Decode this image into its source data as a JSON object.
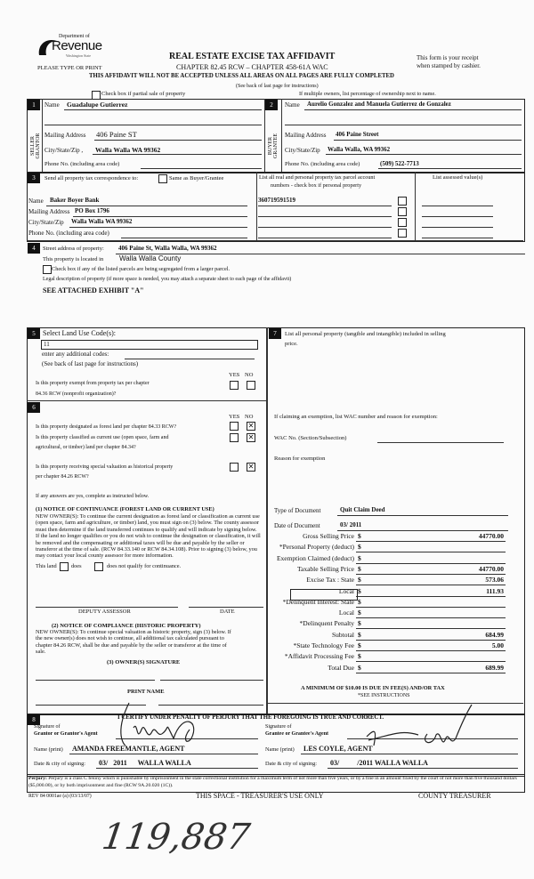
{
  "header": {
    "logo": {
      "line1": "Department of",
      "line2": "Revenue",
      "line3": "Washington State"
    },
    "please_type": "PLEASE TYPE OR PRINT",
    "title": "REAL ESTATE EXCISE TAX AFFIDAVIT",
    "chapter": "CHAPTER 82.45 RCW – CHAPTER 458-61A WAC",
    "receipt_1": "This form is your receipt",
    "receipt_2": "when stamped by cashier.",
    "warning": "THIS AFFIDAVIT WILL NOT BE ACCEPTED UNLESS ALL AREAS ON ALL PAGES ARE FULLY COMPLETED",
    "see_back": "(See back of last page for instructions)",
    "partial_sale": "Check box if partial sale of property",
    "multiple_owners": "If multiple owners, list percentage of ownership next to name."
  },
  "seller": {
    "num": "1",
    "side": "SELLER GRANTOR",
    "name_label": "Name",
    "name": "Guadalupe Gutierrez",
    "addr_label": "Mailing Address",
    "addr": "406 Paine ST",
    "city_label": "City/State/Zip ,",
    "city": "Walla Walla  WA 99362",
    "phone_label": "Phone No. (including area code)",
    "phone": ""
  },
  "buyer": {
    "num": "2",
    "side": "BUYER GRANTEE",
    "name_label": "Name",
    "name": "Aurelio Gonzalez and Manuela Gutierrez de Gonzalez",
    "addr_label": "Mailing Address",
    "addr": "406 Paine Street",
    "city_label": "City/State/Zip",
    "city": "Walla Walla, WA  99362",
    "phone_label": "Phone No. (including area code)",
    "phone": "(509) 522-7713"
  },
  "section3": {
    "num": "3",
    "send_label": "Send all property tax correspondence to:",
    "same_as": "Same as Buyer/Grantee",
    "name_label": "Name",
    "name": "Baker Boyer Bank",
    "addr_label": "Mailing Address",
    "addr": "PO Box 1796",
    "city_label": "City/State/Zip",
    "city": "Walla Walla WA 99362",
    "phone_label": "Phone No. (including area code)",
    "parcel_header_1": "List all real and personal property tax parcel account",
    "parcel_header_2": "numbers - check box if personal property",
    "parcels": [
      "360719591519",
      "",
      "",
      ""
    ],
    "assessed_header": "List assessed value(s)"
  },
  "section4": {
    "num": "4",
    "street_label": "Street address of property:",
    "street": "406 Paine St, Walla Walla, WA  99362",
    "located_label": "This property is located in",
    "county": "Walla Walla County",
    "segregated": "Check box if any of the listed parcels are being segregated from a larger parcel.",
    "legal_label": "Legal description of property (if more space is needed, you may attach a separate sheet to each page of the affidavit)",
    "legal": "SEE ATTACHED EXHIBIT \"A\""
  },
  "section5": {
    "num": "5",
    "land_use_label": "Select Land Use Code(s):",
    "land_use": "11",
    "additional": "enter any additional codes:",
    "see_back": "(See back of last page for instructions)",
    "yes": "YES",
    "no": "NO",
    "exempt_q1": "Is this property exempt from property tax per chapter",
    "exempt_q2": "84.36 RCW (nonprofit organization)?"
  },
  "section6": {
    "num": "6",
    "yes": "YES",
    "no": "NO",
    "q1": "Is this property designated as forest land per chapter 84.33 RCW?",
    "q2a": "Is this property classified as current use (open space, farm and",
    "q2b": "agricultural, or timber) land per chapter 84.34?",
    "q3a": "Is this property receiving special valuation as historical property",
    "q3b": "per chapter 84.26 RCW?",
    "answers": {
      "q1": "NO",
      "q2": "NO",
      "q3": "NO"
    },
    "if_yes": "If any answers are yes, complete as instructed below.",
    "notice1_title": "(1) NOTICE OF CONTINUANCE (FOREST LAND OR CURRENT USE)",
    "notice1_text": "NEW OWNER(S): To continue the current designation as forest land or classification as current use (open space, farm and agriculture, or timber) land, you must sign on (3) below. The county assessor must then determine if the land transferred continues to qualify and will indicate by signing below. If the land no longer qualifies or you do not wish to continue the designation or classification, it will be removed and the compensating or additional taxes will be due and payable by the seller or transferor at the time of sale. (RCW 84.33.140 or RCW 84.34.108). Prior to signing (3) below, you may contact your local county assessor for more information.",
    "this_land": "This land",
    "does": "does",
    "does_not": "does not  qualify for continuance.",
    "deputy": "DEPUTY ASSESSOR",
    "date": "DATE",
    "notice2_title": "(2) NOTICE OF COMPLIANCE (HISTORIC PROPERTY)",
    "notice2_text": "NEW OWNER(S): To continue special valuation as historic property, sign (3) below. If the new owner(s) does not wish to continue, all additional tax calculated pursuant to chapter 84.26 RCW, shall be due and payable by the seller or transferor at the time of sale.",
    "owner_sig": "(3) OWNER(S) SIGNATURE",
    "print_name": "PRINT NAME"
  },
  "section7": {
    "num": "7",
    "personal_property_1": "List all personal property (tangible and intangible) included in selling",
    "personal_property_2": "price.",
    "exemption_label": "If claiming an exemption, list WAC number and reason for exemption:",
    "wac_label": "WAC No. (Section/Subsection)",
    "reason_label": "Reason for exemption",
    "doc_type_label": "Type of Document",
    "doc_type": "Quit Claim Deed",
    "doc_date_label": "Date of Document",
    "doc_date": "03/   2011",
    "tax_rows": [
      {
        "label": "Gross Selling Price",
        "value": "44770.00"
      },
      {
        "label": "*Personal Property (deduct)",
        "value": ""
      },
      {
        "label": "Exemption Claimed (deduct)",
        "value": ""
      },
      {
        "label": "Taxable Selling Price",
        "value": "44770.00"
      },
      {
        "label": "Excise Tax : State",
        "value": "573.06"
      },
      {
        "label": "Local",
        "value": "111.93"
      },
      {
        "label": "*Delinquent Interest:  State",
        "value": ""
      },
      {
        "label": "Local",
        "value": ""
      },
      {
        "label": "*Delinquent Penalty",
        "value": ""
      },
      {
        "label": "Subtotal",
        "value": "684.99"
      },
      {
        "label": "*State Technology Fee",
        "value": "5.00"
      },
      {
        "label": "*Affidavit Processing Fee",
        "value": ""
      },
      {
        "label": "Total Due",
        "value": "689.99"
      }
    ],
    "currency": "$",
    "minimum": "A MINIMUM OF $10.00 IS DUE IN FEE(S) AND/OR TAX",
    "see_instr": "*SEE INSTRUCTIONS"
  },
  "section8": {
    "num": "8",
    "certify": "I CERTIFY UNDER PENALTY OF PERJURY THAT THE FOREGOING IS TRUE AND CORRECT.",
    "grantor_sig_1": "Signature of",
    "grantor_sig_2": "Grantor or Grantor's Agent",
    "grantor_name_label": "Name (print)",
    "grantor_name": "AMANDA FREEMANTLE, AGENT",
    "grantor_date_label": "Date & city of signing:",
    "grantor_date": "03/   2011      WALLA WALLA",
    "grantee_sig_1": "Signature of",
    "grantee_sig_2": "Grantee or Grantee's Agent",
    "grantee_name_label": "Name (print)",
    "grantee_name": "LES COYLE, AGENT",
    "grantee_date_label": "Date & city of signing:",
    "grantee_date": "03/          /2011 WALLA WALLA"
  },
  "footer": {
    "perjury_label": "Perjury:",
    "perjury_text": "Perjury is a class C felony which is punishable by imprisonment in the state correctional institution for a maximum term of not more than five years, or by a fine in an amount fixed by the court of not more than five thousand dollars ($5,000.00), or by both imprisonment and fine (RCW 9A.20.020 (1C)).",
    "rev": "REV 84 0001ae (a) (03/13/07)",
    "treasurer_space": "THIS SPACE - TREASURER'S USE ONLY",
    "county_treasurer": "COUNTY TREASURER"
  },
  "handwritten_number": "119,887"
}
